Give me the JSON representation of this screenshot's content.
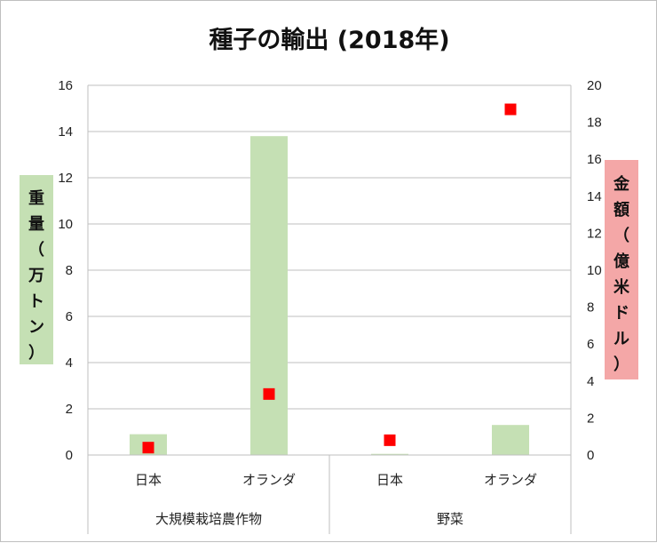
{
  "chart_data": {
    "type": "bar",
    "title": "種子の輸出 (2018年)",
    "categories": [
      "日本",
      "オランダ",
      "日本",
      "オランダ"
    ],
    "groups": [
      {
        "label": "大規模栽培農作物",
        "categories": [
          "日本",
          "オランダ"
        ]
      },
      {
        "label": "野菜",
        "categories": [
          "日本",
          "オランダ"
        ]
      }
    ],
    "series": [
      {
        "name": "重量（万トン）",
        "type": "bar",
        "axis": "left",
        "color": "#c5e0b4",
        "values": [
          0.9,
          13.8,
          0.05,
          1.3
        ]
      },
      {
        "name": "金額（億米ドル）",
        "type": "scatter",
        "axis": "right",
        "color": "#ff0000",
        "values": [
          0.4,
          3.3,
          0.8,
          18.7
        ]
      }
    ],
    "ylabel": "重量（万トン）",
    "ylabel_chars": [
      "重",
      "量",
      "（",
      "万",
      "ト",
      "ン",
      "）"
    ],
    "ylabel_bg": "#c5e0b4",
    "ylim": [
      0,
      16
    ],
    "yticks": [
      "0",
      "2",
      "4",
      "6",
      "8",
      "10",
      "12",
      "14",
      "16"
    ],
    "y2label": "金額（億米ドル）",
    "y2label_chars": [
      "金",
      "額",
      "（",
      "億",
      "米",
      "ド",
      "ル",
      "）"
    ],
    "y2label_bg": "#f4a7a7",
    "y2lim": [
      0,
      20
    ],
    "y2ticks": [
      "0",
      "2",
      "4",
      "6",
      "8",
      "10",
      "12",
      "14",
      "16",
      "18",
      "20"
    ],
    "grid": true,
    "gridline_color": "#bfbfbf"
  }
}
